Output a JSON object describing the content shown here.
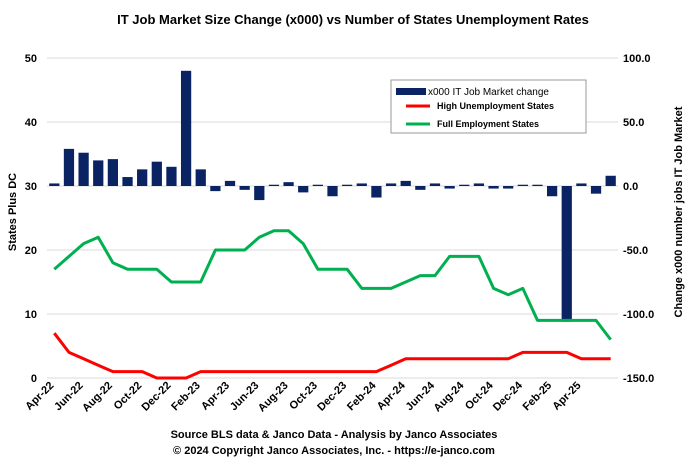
{
  "chart_data": {
    "type": "bar+line",
    "title": "IT Job Market Size Change (x000)  vs Number of States Unemployment Rates",
    "ylabel_left": "States Plus DC",
    "ylabel_right": "Change x000 number jobs IT Job Market",
    "ylim_left": [
      0,
      50
    ],
    "yticks_left": [
      "0",
      "10",
      "20",
      "30",
      "40",
      "50"
    ],
    "ylim_right": [
      -150,
      100
    ],
    "yticks_right": [
      "-150.0",
      "-100.0",
      "-50.0",
      "0.0",
      "50.0",
      "100.0"
    ],
    "xtick_labels": [
      "Apr-22",
      "Jun-22",
      "Aug-22",
      "Oct-22",
      "Dec-22",
      "Feb-23",
      "Apr-23",
      "Jun-23",
      "Aug-23",
      "Oct-23",
      "Dec-23",
      "Feb-24",
      "Apr-24",
      "Jun-24",
      "Aug-24",
      "Oct-24",
      "Dec-24",
      "Feb-25",
      "Apr-25"
    ],
    "colors": {
      "bars": "#0a2463",
      "high": "#ff0000",
      "full": "#00b050"
    },
    "series": [
      {
        "name": "x000 IT Job Market change",
        "axis": "right",
        "kind": "bar",
        "values": [
          2,
          29,
          26,
          20,
          21,
          7,
          13,
          19,
          15,
          90,
          13,
          -4,
          4,
          -3,
          -11,
          1,
          3,
          -5,
          1,
          -8,
          1,
          2,
          -9,
          2,
          4,
          -3,
          2,
          -2,
          1,
          2,
          -2,
          -2,
          1,
          1,
          -8,
          -106,
          2,
          -6,
          8
        ]
      },
      {
        "name": "High Unemployment States",
        "axis": "left",
        "kind": "line",
        "values": [
          7,
          4,
          3,
          2,
          1,
          1,
          1,
          0,
          0,
          0,
          1,
          1,
          1,
          1,
          1,
          1,
          1,
          1,
          1,
          1,
          1,
          1,
          1,
          2,
          3,
          3,
          3,
          3,
          3,
          3,
          3,
          3,
          4,
          4,
          4,
          4,
          3,
          3,
          3
        ]
      },
      {
        "name": "Full Employment States",
        "axis": "left",
        "kind": "line",
        "values": [
          17,
          19,
          21,
          22,
          18,
          17,
          17,
          17,
          15,
          15,
          15,
          20,
          20,
          20,
          22,
          23,
          23,
          21,
          17,
          17,
          17,
          14,
          14,
          14,
          15,
          16,
          16,
          19,
          19,
          19,
          14,
          13,
          14,
          9,
          9,
          9,
          9,
          9,
          6
        ]
      }
    ],
    "legend": {
      "position": "top-right",
      "entries": [
        "x000 IT Job Market change",
        "High Unemployment States",
        "Full Employment States"
      ]
    },
    "footer_lines": [
      "Source BLS data & Janco  Data  - Analysis  by Janco  Associates",
      "© 2024 Copyright Janco Associates, Inc. - https://e-janco.com"
    ]
  }
}
